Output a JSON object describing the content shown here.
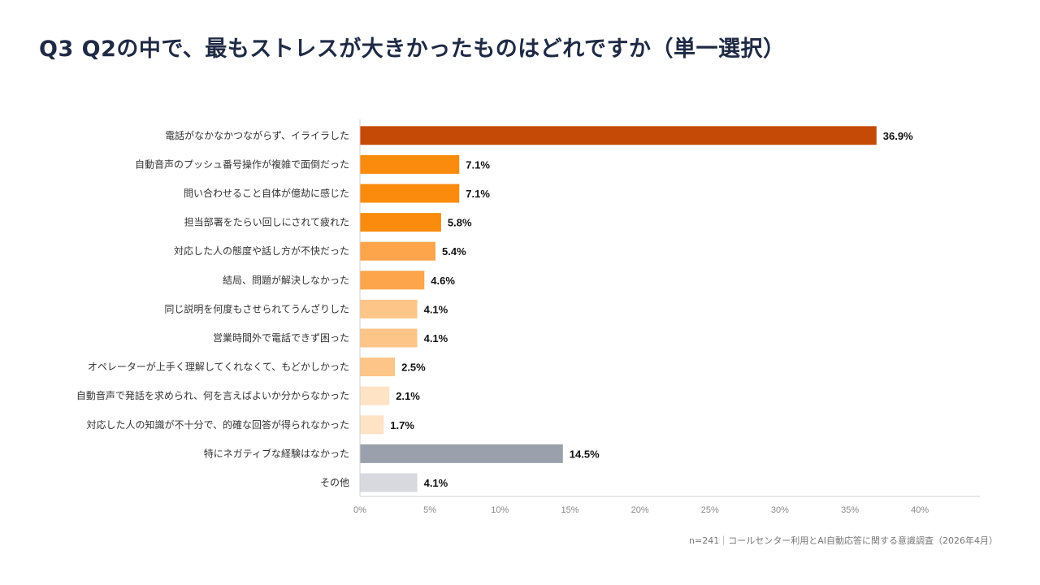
{
  "title": "Q3 Q2の中で、最もストレスが大きかったものはどれですか（単一選択）",
  "source": "n=241｜コールセンター利用とAI自動応答に関する意識調査（2026年4月）",
  "chart_data": {
    "type": "bar",
    "orientation": "horizontal",
    "categories": [
      "電話がなかなかつながらず、イライラした",
      "自動音声のプッシュ番号操作が複雑で面倒だった",
      "問い合わせること自体が億劫に感じた",
      "担当部署をたらい回しにされて疲れた",
      "対応した人の態度や話し方が不快だった",
      "結局、問題が解決しなかった",
      "同じ説明を何度もさせられてうんざりした",
      "営業時間外で電話できず困った",
      "オペレーターが上手く理解してくれなくて、もどかしかった",
      "自動音声で発話を求められ、何を言えばよいか分からなかった",
      "対応した人の知識が不十分で、的確な回答が得られなかった",
      "特にネガティブな経験はなかった",
      "その他"
    ],
    "values": [
      36.9,
      7.1,
      7.1,
      5.8,
      5.4,
      4.6,
      4.1,
      4.1,
      2.5,
      2.1,
      1.7,
      14.5,
      4.1
    ],
    "value_labels": [
      "36.9%",
      "7.1%",
      "7.1%",
      "5.8%",
      "5.4%",
      "4.6%",
      "4.1%",
      "4.1%",
      "2.5%",
      "2.1%",
      "1.7%",
      "14.5%",
      "4.1%"
    ],
    "colors": [
      "#c44a05",
      "#fb8b0c",
      "#fb8b0c",
      "#fb8b0c",
      "#fca54b",
      "#fca54b",
      "#fec589",
      "#fec589",
      "#fec589",
      "#fee3c4",
      "#fee3c4",
      "#9ba1ac",
      "#d7d9df"
    ],
    "x_ticks": [
      "0%",
      "5%",
      "10%",
      "15%",
      "20%",
      "25%",
      "30%",
      "35%",
      "40%"
    ],
    "xlim": [
      0,
      44
    ],
    "grid": false,
    "legend": "none"
  }
}
